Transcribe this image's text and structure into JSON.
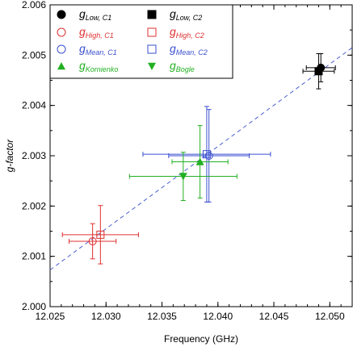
{
  "chart_data": {
    "type": "scatter",
    "xlabel": "Frequency (GHz)",
    "ylabel": "g-factor",
    "xlim": [
      12.025,
      12.052
    ],
    "ylim": [
      2.0,
      2.006
    ],
    "x_ticks": [
      "12.025",
      "12.030",
      "12.035",
      "12.040",
      "12.045",
      "12.050"
    ],
    "y_ticks": [
      "2.000",
      "2.001",
      "2.002",
      "2.003",
      "2.004",
      "2.005",
      "2.006"
    ],
    "grid": false,
    "legend_position": "top-left",
    "fit_line": {
      "style": "dashed",
      "color": "#4a5fd0",
      "x": [
        12.025,
        12.052
      ],
      "y": [
        2.00073,
        2.00515
      ]
    },
    "series": [
      {
        "name": "g",
        "subscript": "Low, C1",
        "color": "#000000",
        "marker": "filled-circle",
        "points": [
          {
            "x": 12.0492,
            "y": 2.00475,
            "xerr": 0.0013,
            "yerr": 0.00028
          }
        ]
      },
      {
        "name": "g",
        "subscript": "Low, C2",
        "color": "#000000",
        "marker": "filled-square",
        "points": [
          {
            "x": 12.049,
            "y": 2.00468,
            "xerr": 0.0014,
            "yerr": 0.00035
          }
        ]
      },
      {
        "name": "g",
        "subscript": "High, C1",
        "color": "#e03030",
        "marker": "open-circle",
        "points": [
          {
            "x": 12.0288,
            "y": 2.0013,
            "xerr": 0.0021,
            "yerr": 0.00035
          }
        ]
      },
      {
        "name": "g",
        "subscript": "High, C2",
        "color": "#e03030",
        "marker": "open-square",
        "points": [
          {
            "x": 12.0295,
            "y": 2.00143,
            "xerr": 0.0034,
            "yerr": 0.00058
          }
        ]
      },
      {
        "name": "g",
        "subscript": "Mean, C1",
        "color": "#3a4fd0",
        "marker": "open-circle",
        "points": [
          {
            "x": 12.0392,
            "y": 2.003,
            "xerr": 0.0036,
            "yerr": 0.00092
          }
        ]
      },
      {
        "name": "g",
        "subscript": "Mean, C2",
        "color": "#3a4fd0",
        "marker": "open-square",
        "points": [
          {
            "x": 12.039,
            "y": 2.00303,
            "xerr": 0.0057,
            "yerr": 0.00095
          }
        ]
      },
      {
        "name": "g",
        "subscript": "Kornienko",
        "color": "#22b022",
        "marker": "filled-triangle-up",
        "points": [
          {
            "x": 12.0384,
            "y": 2.00288,
            "xerr": 0.0025,
            "yerr": 0.00072
          }
        ]
      },
      {
        "name": "g",
        "subscript": "Bogle",
        "color": "#22b022",
        "marker": "filled-triangle-down",
        "points": [
          {
            "x": 12.0369,
            "y": 2.00259,
            "xerr": 0.0048,
            "yerr": 0.00048
          }
        ]
      }
    ]
  }
}
